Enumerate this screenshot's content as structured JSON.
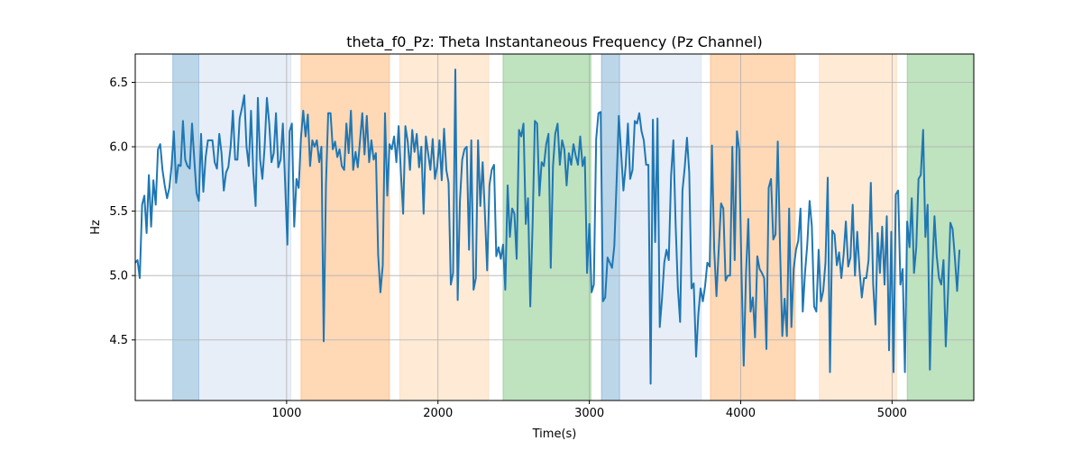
{
  "chart_data": {
    "type": "line",
    "title": "theta_f0_Pz: Theta Instantaneous Frequency (Pz Channel)",
    "xlabel": "Time(s)",
    "ylabel": "Hz",
    "xlim": [
      0,
      5540
    ],
    "ylim": [
      4.03,
      6.72
    ],
    "grid": true,
    "x_ticks": [
      1000,
      2000,
      3000,
      4000,
      5000
    ],
    "y_ticks": [
      4.5,
      5.0,
      5.5,
      6.0,
      6.5
    ],
    "series": [
      {
        "color": "#1f77b4",
        "x_start": 0,
        "x_step": 15,
        "values": [
          5.1,
          5.12,
          4.98,
          5.55,
          5.62,
          5.33,
          5.78,
          5.38,
          5.74,
          5.55,
          5.98,
          6.02,
          5.82,
          5.7,
          5.6,
          5.68,
          5.85,
          6.12,
          5.72,
          5.86,
          5.85,
          6.2,
          5.9,
          5.85,
          5.83,
          6.18,
          5.9,
          5.64,
          5.58,
          6.1,
          5.65,
          5.92,
          6.05,
          6.05,
          6.05,
          5.88,
          5.83,
          6.1,
          5.95,
          5.66,
          5.8,
          5.84,
          6.0,
          6.28,
          5.9,
          5.9,
          6.22,
          6.3,
          6.4,
          6.0,
          5.85,
          6.28,
          5.8,
          5.54,
          6.38,
          5.9,
          5.75,
          6.0,
          6.38,
          6.18,
          5.88,
          5.95,
          6.26,
          5.84,
          5.9,
          6.18,
          5.72,
          5.24,
          6.12,
          6.18,
          5.38,
          5.75,
          5.68,
          6.07,
          6.28,
          6.08,
          6.25,
          5.85,
          6.05,
          6.0,
          6.05,
          5.88,
          6.0,
          4.49,
          5.7,
          6.26,
          6.26,
          5.98,
          6.04,
          5.92,
          5.98,
          5.85,
          5.82,
          6.18,
          5.95,
          6.28,
          5.82,
          5.96,
          5.84,
          6.05,
          6.26,
          5.94,
          6.24,
          5.88,
          6.05,
          5.9,
          5.95,
          5.16,
          4.87,
          5.08,
          6.26,
          5.62,
          6.02,
          5.98,
          6.08,
          5.88,
          6.16,
          5.8,
          5.48,
          6.16,
          6.04,
          5.82,
          6.13,
          5.96,
          6.1,
          5.84,
          6.0,
          5.48,
          6.08,
          5.95,
          5.82,
          6.06,
          5.75,
          5.85,
          6.05,
          5.74,
          6.14,
          5.82,
          5.72,
          4.93,
          5.02,
          6.6,
          4.81,
          5.58,
          5.9,
          5.98,
          6.0,
          5.2,
          6.05,
          4.89,
          4.98,
          6.05,
          5.54,
          5.88,
          5.48,
          5.04,
          5.7,
          5.82,
          5.86,
          5.15,
          5.22,
          5.13,
          5.24,
          4.89,
          5.7,
          5.3,
          5.52,
          5.48,
          5.13,
          6.13,
          6.08,
          6.18,
          5.4,
          5.6,
          4.76,
          5.4,
          6.2,
          6.18,
          5.62,
          5.88,
          5.85,
          6.02,
          6.1,
          5.06,
          5.85,
          6.1,
          6.18,
          5.86,
          6.05,
          5.98,
          5.7,
          5.95,
          5.86,
          6.02,
          5.93,
          5.86,
          6.08,
          5.85,
          5.92,
          5.02,
          5.4,
          4.87,
          4.93,
          6.06,
          6.26,
          6.27,
          4.8,
          4.83,
          5.14,
          5.1,
          5.06,
          5.23,
          5.72,
          6.24,
          5.95,
          5.66,
          5.85,
          6.18,
          5.75,
          5.82,
          6.2,
          6.18,
          6.26,
          6.12,
          6.05,
          5.86,
          5.86,
          4.16,
          6.21,
          5.26,
          6.22,
          4.6,
          4.82,
          5.1,
          5.2,
          5.12,
          5.78,
          6.05,
          5.4,
          4.9,
          4.64,
          5.66,
          5.84,
          6.07,
          5.8,
          4.9,
          4.94,
          4.37,
          4.7,
          4.9,
          4.8,
          4.92,
          5.1,
          5.07,
          6.01,
          5.2,
          4.84,
          5.2,
          5.56,
          5.52,
          4.96,
          5.0,
          5.0,
          6.0,
          5.12,
          6.12,
          5.98,
          5.05,
          4.3,
          5.02,
          5.44,
          4.72,
          4.83,
          4.52,
          5.15,
          5.05,
          5.02,
          4.98,
          4.43,
          5.68,
          5.75,
          5.28,
          5.32,
          6.04,
          5.22,
          4.53,
          4.82,
          4.53,
          5.52,
          4.6,
          5.05,
          5.2,
          5.27,
          5.52,
          4.72,
          5.02,
          5.24,
          5.58,
          5.38,
          4.76,
          4.72,
          5.2,
          4.8,
          4.88,
          5.1,
          5.76,
          4.25,
          5.35,
          5.32,
          5.08,
          5.18,
          4.98,
          5.16,
          5.42,
          5.07,
          5.14,
          5.55,
          5.0,
          5.34,
          5.04,
          4.83,
          4.98,
          4.98,
          5.12,
          5.72,
          4.93,
          4.62,
          5.33,
          5.02,
          5.38,
          4.93,
          5.46,
          4.42,
          5.34,
          4.25,
          5.63,
          5.66,
          4.93,
          5.05,
          4.25,
          5.42,
          5.22,
          5.6,
          5.02,
          5.22,
          5.75,
          5.78,
          6.13,
          5.3,
          5.55,
          4.27,
          5.0,
          5.46,
          5.15,
          4.98,
          4.93,
          5.12,
          4.45,
          4.88,
          5.41,
          5.36,
          5.14,
          4.88,
          5.2
        ]
      }
    ],
    "shaded_regions": [
      {
        "x0": 248,
        "x1": 420,
        "color": "#1f77b4",
        "alpha": 0.3
      },
      {
        "x0": 420,
        "x1": 1028,
        "color": "#aec7e8",
        "alpha": 0.3
      },
      {
        "x0": 1095,
        "x1": 1680,
        "color": "#ff7f0e",
        "alpha": 0.3
      },
      {
        "x0": 1748,
        "x1": 2335,
        "color": "#ffbb78",
        "alpha": 0.3
      },
      {
        "x0": 2430,
        "x1": 3010,
        "color": "#2ca02c",
        "alpha": 0.3
      },
      {
        "x0": 3080,
        "x1": 3200,
        "color": "#1f77b4",
        "alpha": 0.3
      },
      {
        "x0": 3200,
        "x1": 3740,
        "color": "#aec7e8",
        "alpha": 0.3
      },
      {
        "x0": 3800,
        "x1": 4360,
        "color": "#ff7f0e",
        "alpha": 0.3
      },
      {
        "x0": 4520,
        "x1": 5030,
        "color": "#ffbb78",
        "alpha": 0.3
      },
      {
        "x0": 5100,
        "x1": 5540,
        "color": "#2ca02c",
        "alpha": 0.3
      }
    ]
  }
}
